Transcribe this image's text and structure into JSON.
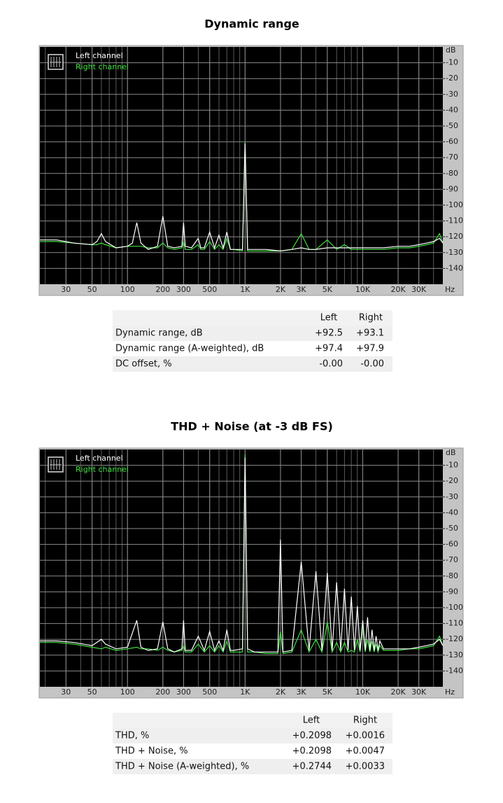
{
  "chart_data": [
    {
      "type": "line",
      "title": "Dynamic range",
      "xlabel": "Hz",
      "ylabel": "dB",
      "log_x": true,
      "grid": true,
      "legend": "upper left",
      "xlim": [
        18,
        48000
      ],
      "ylim": [
        -150,
        0
      ],
      "xticks": [
        30,
        50,
        100,
        200,
        300,
        500,
        {
          "value": 1000,
          "label": "1K"
        },
        {
          "value": 2000,
          "label": "2K"
        },
        {
          "value": 3000,
          "label": "3K"
        },
        {
          "value": 5000,
          "label": "5K"
        },
        {
          "value": 10000,
          "label": "10K"
        },
        {
          "value": 20000,
          "label": "20K"
        },
        {
          "value": 30000,
          "label": "30K"
        }
      ],
      "yticks": [
        -10,
        -20,
        -30,
        -40,
        -50,
        -60,
        -70,
        -80,
        -90,
        -100,
        -110,
        -120,
        -130,
        -140
      ],
      "x": [
        18,
        25,
        35,
        50,
        55,
        60,
        65,
        80,
        100,
        110,
        120,
        130,
        150,
        180,
        200,
        220,
        250,
        290,
        300,
        310,
        350,
        400,
        420,
        450,
        500,
        550,
        600,
        650,
        700,
        750,
        800,
        950,
        1000,
        1050,
        1200,
        1500,
        2000,
        2500,
        3000,
        3500,
        4000,
        5000,
        6000,
        7000,
        8000,
        10000,
        12000,
        15000,
        20000,
        25000,
        30000,
        35000,
        40000,
        45000,
        48000
      ],
      "series": [
        {
          "name": "Left channel",
          "color": "#ffffff",
          "values": [
            -122,
            -122,
            -124,
            -125,
            -123,
            -118,
            -123,
            -127,
            -126,
            -124,
            -111,
            -124,
            -128,
            -126,
            -107,
            -126,
            -127,
            -126,
            -111,
            -126,
            -127,
            -121,
            -127,
            -127,
            -117,
            -127,
            -119,
            -127,
            -117,
            -128,
            -128,
            -128,
            -61,
            -128,
            -128,
            -128,
            -129,
            -128,
            -127,
            -128,
            -128,
            -127,
            -127,
            -127,
            -127,
            -127,
            -127,
            -127,
            -126,
            -126,
            -125,
            -124,
            -123,
            -121,
            -124
          ]
        },
        {
          "name": "Right channel",
          "color": "#3ee03e",
          "values": [
            -123,
            -123,
            -124,
            -125,
            -125,
            -124,
            -125,
            -127,
            -126,
            -126,
            -126,
            -126,
            -127,
            -127,
            -124,
            -127,
            -128,
            -127,
            -123,
            -128,
            -128,
            -125,
            -128,
            -128,
            -123,
            -128,
            -125,
            -128,
            -121,
            -128,
            -128,
            -129,
            -60,
            -129,
            -129,
            -129,
            -129,
            -128,
            -118,
            -128,
            -128,
            -122,
            -128,
            -125,
            -128,
            -128,
            -128,
            -128,
            -127,
            -127,
            -126,
            -125,
            -124,
            -118,
            -124
          ]
        }
      ]
    },
    {
      "type": "line",
      "title": "THD + Noise (at -3 dB FS)",
      "xlabel": "Hz",
      "ylabel": "dB",
      "log_x": true,
      "grid": true,
      "legend": "upper left",
      "xlim": [
        18,
        48000
      ],
      "ylim": [
        -150,
        0
      ],
      "xticks": [
        30,
        50,
        100,
        200,
        300,
        500,
        {
          "value": 1000,
          "label": "1K"
        },
        {
          "value": 2000,
          "label": "2K"
        },
        {
          "value": 3000,
          "label": "3K"
        },
        {
          "value": 5000,
          "label": "5K"
        },
        {
          "value": 10000,
          "label": "10K"
        },
        {
          "value": 20000,
          "label": "20K"
        },
        {
          "value": 30000,
          "label": "30K"
        }
      ],
      "yticks": [
        -10,
        -20,
        -30,
        -40,
        -50,
        -60,
        -70,
        -80,
        -90,
        -100,
        -110,
        -120,
        -130,
        -140
      ],
      "x": [
        18,
        25,
        35,
        50,
        60,
        65,
        80,
        100,
        120,
        130,
        150,
        180,
        200,
        220,
        250,
        290,
        300,
        310,
        350,
        400,
        450,
        500,
        550,
        600,
        650,
        700,
        750,
        800,
        950,
        1000,
        1050,
        1200,
        1500,
        1900,
        2000,
        2100,
        2500,
        3000,
        3500,
        4000,
        4500,
        5000,
        5500,
        6000,
        6500,
        7000,
        7500,
        8000,
        8500,
        9000,
        9500,
        10000,
        10500,
        11000,
        11500,
        12000,
        12500,
        13000,
        13500,
        14000,
        15000,
        17000,
        20000,
        25000,
        30000,
        35000,
        40000,
        45000,
        48000
      ],
      "series": [
        {
          "name": "Left channel",
          "color": "#ffffff",
          "values": [
            -121,
            -121,
            -122,
            -124,
            -120,
            -123,
            -126,
            -125,
            -108,
            -125,
            -127,
            -126,
            -109,
            -126,
            -128,
            -126,
            -108,
            -127,
            -127,
            -118,
            -127,
            -115,
            -127,
            -121,
            -127,
            -114,
            -127,
            -127,
            -126,
            -5,
            -126,
            -128,
            -128,
            -128,
            -57,
            -128,
            -127,
            -71,
            -127,
            -77,
            -127,
            -78,
            -127,
            -84,
            -127,
            -88,
            -127,
            -93,
            -127,
            -99,
            -127,
            -108,
            -127,
            -106,
            -127,
            -114,
            -127,
            -118,
            -127,
            -121,
            -126,
            -126,
            -126,
            -126,
            -125,
            -124,
            -123,
            -120,
            -124
          ]
        },
        {
          "name": "Right channel",
          "color": "#3ee03e",
          "values": [
            -122,
            -122,
            -123,
            -125,
            -126,
            -125,
            -127,
            -126,
            -125,
            -126,
            -126,
            -127,
            -125,
            -127,
            -128,
            -127,
            -124,
            -128,
            -128,
            -123,
            -128,
            -124,
            -128,
            -124,
            -128,
            -121,
            -128,
            -128,
            -128,
            -3,
            -128,
            -128,
            -129,
            -129,
            -115,
            -129,
            -128,
            -114,
            -128,
            -120,
            -128,
            -109,
            -128,
            -122,
            -128,
            -122,
            -128,
            -127,
            -128,
            -120,
            -128,
            -111,
            -128,
            -120,
            -128,
            -121,
            -128,
            -123,
            -128,
            -124,
            -127,
            -127,
            -127,
            -126,
            -126,
            -125,
            -124,
            -118,
            -124
          ]
        }
      ]
    }
  ],
  "tables": [
    {
      "columns": [
        "Left",
        "Right"
      ],
      "rows": [
        {
          "label": "Dynamic range, dB",
          "values": [
            "+92.5",
            "+93.1"
          ]
        },
        {
          "label": "Dynamic range (A-weighted), dB",
          "values": [
            "+97.4",
            "+97.9"
          ]
        },
        {
          "label": "DC offset, %",
          "values": [
            "-0.00",
            "-0.00"
          ]
        }
      ]
    },
    {
      "columns": [
        "Left",
        "Right"
      ],
      "rows": [
        {
          "label": "THD, %",
          "values": [
            "+0.2098",
            "+0.0016"
          ]
        },
        {
          "label": "THD + Noise, %",
          "values": [
            "+0.2098",
            "+0.0047"
          ]
        },
        {
          "label": "THD + Noise (A-weighted), %",
          "values": [
            "+0.2744",
            "+0.0033"
          ]
        }
      ]
    }
  ]
}
